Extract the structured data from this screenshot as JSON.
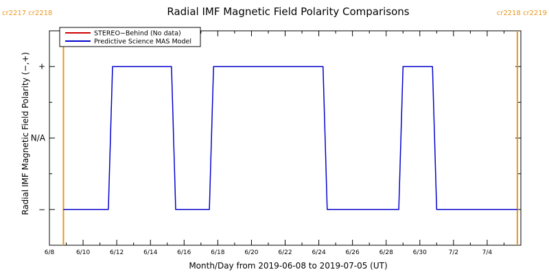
{
  "chart_data": {
    "type": "line",
    "title": "Radial IMF Magnetic Field Polarity Comparisons",
    "xlabel": "Month/Day from 2019-06-08 to 2019-07-05 (UT)",
    "ylabel": "Radial IMF Magnetic Field Polarity (−,+)",
    "x_range": [
      "2019-06-08",
      "2019-07-05"
    ],
    "y_categories": [
      "−",
      "N/A",
      "+"
    ],
    "y_range": [
      -1.5,
      1.5
    ],
    "x_ticks": [
      "6/8",
      "6/10",
      "6/12",
      "6/14",
      "6/16",
      "6/18",
      "6/20",
      "6/22",
      "6/24",
      "6/26",
      "6/28",
      "6/30",
      "7/2",
      "7/4"
    ],
    "legend": {
      "position": "top-left",
      "entries": [
        {
          "name": "STEREO−Behind (No data)",
          "color": "#cc0000"
        },
        {
          "name": "Predictive Science MAS Model",
          "color": "#0000cc"
        }
      ]
    },
    "carrington_markers": [
      {
        "date": "2019-06-08T20:00",
        "labels_left": [
          "cr2217",
          "cr2218"
        ],
        "color": "#e8961e"
      },
      {
        "date": "2019-07-05T19:00",
        "labels_right": [
          "cr2218",
          "cr2219"
        ],
        "color": "#e8961e"
      }
    ],
    "series": [
      {
        "name": "Predictive Science MAS Model",
        "color": "#0000cc",
        "points": [
          {
            "x": "2019-06-08T20:00",
            "y": -1
          },
          {
            "x": "2019-06-11T12:00",
            "y": -1
          },
          {
            "x": "2019-06-11T18:00",
            "y": 1
          },
          {
            "x": "2019-06-15T06:00",
            "y": 1
          },
          {
            "x": "2019-06-15T12:00",
            "y": -1
          },
          {
            "x": "2019-06-17T12:00",
            "y": -1
          },
          {
            "x": "2019-06-17T18:00",
            "y": 1
          },
          {
            "x": "2019-06-24T06:00",
            "y": 1
          },
          {
            "x": "2019-06-24T12:00",
            "y": -1
          },
          {
            "x": "2019-06-28T18:00",
            "y": -1
          },
          {
            "x": "2019-06-29T00:00",
            "y": 1
          },
          {
            "x": "2019-06-30T18:00",
            "y": 1
          },
          {
            "x": "2019-07-01T00:00",
            "y": -1
          },
          {
            "x": "2019-07-05T19:00",
            "y": -1
          }
        ]
      }
    ]
  }
}
